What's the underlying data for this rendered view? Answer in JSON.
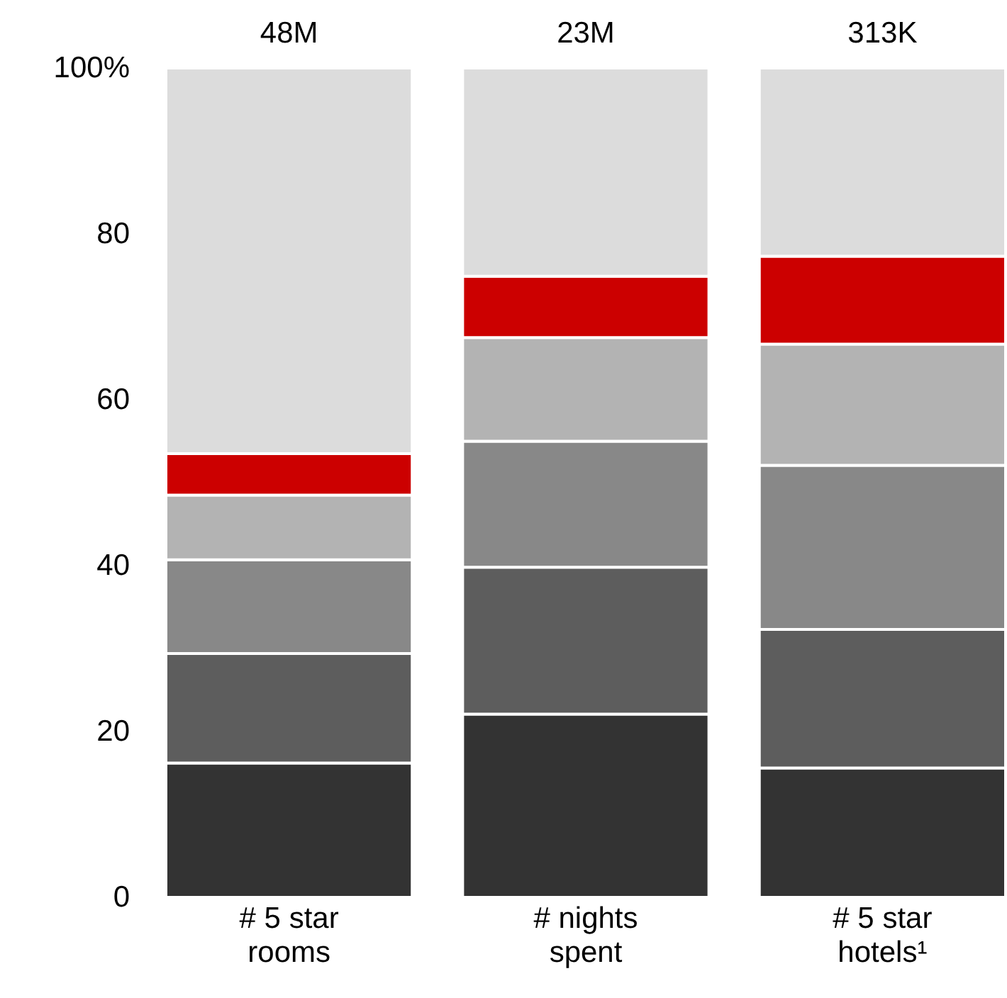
{
  "chart_data": {
    "type": "bar",
    "stacked": true,
    "categories": [
      "# 5 star rooms",
      "# nights spent",
      "# 5 star hotels¹"
    ],
    "series": [
      {
        "color": "#333333",
        "values": [
          16.2,
          22.1,
          15.6
        ]
      },
      {
        "color": "#5d5d5d",
        "values": [
          13.2,
          17.7,
          16.7
        ]
      },
      {
        "color": "#888888",
        "values": [
          11.3,
          15.2,
          19.8
        ]
      },
      {
        "color": "#b3b3b3",
        "values": [
          7.8,
          12.5,
          14.6
        ]
      },
      {
        "color": "#cc0000",
        "values": [
          5.0,
          7.4,
          10.6
        ]
      },
      {
        "color": "#dcdcdc",
        "values": [
          46.5,
          25.1,
          22.7
        ]
      }
    ],
    "annotations": [
      {
        "text": "48M",
        "x": "# 5 star rooms",
        "y": 100
      },
      {
        "text": "23M",
        "x": "# nights spent",
        "y": 100
      },
      {
        "text": "313K",
        "x": "# 5 star hotels¹",
        "y": 100
      }
    ],
    "ylim": [
      0,
      100
    ],
    "yticks": [
      0,
      20,
      40,
      60,
      80,
      {
        "value": 100,
        "label": "100%"
      }
    ],
    "grid": false,
    "legend": false
  }
}
